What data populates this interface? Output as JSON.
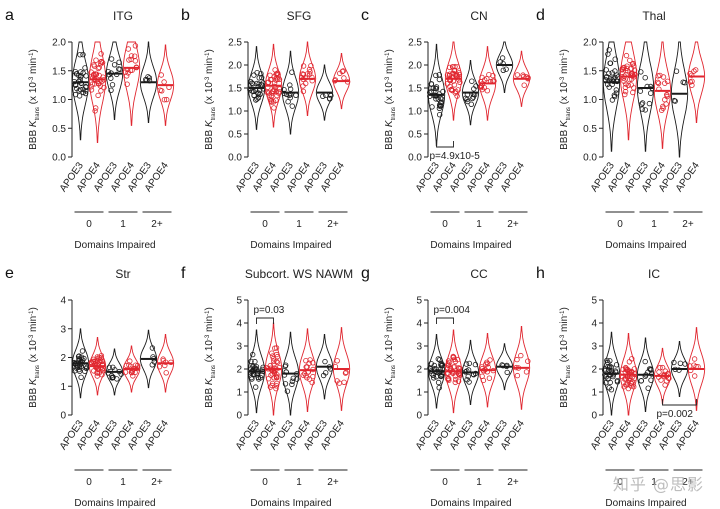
{
  "x_groups": [
    "0",
    "1",
    "2+"
  ],
  "x_labels": [
    "APOE3",
    "APOE4",
    "APOE3",
    "APOE4",
    "APOE3",
    "APOE4"
  ],
  "x_axis_title": "Domains Impaired",
  "colors": {
    "APOE3": "#1a1a1a",
    "APOE4": "#e0262f"
  },
  "watermark": "知乎 @思影",
  "chart_data": [
    {
      "type": "violin",
      "panel": "a",
      "title": "ITG",
      "ylabel": "BBB Ktrans (x 10-3 min-1)",
      "ylim": [
        0,
        2
      ],
      "yticks": [
        "0.0",
        "0.5",
        "1.0",
        "1.5",
        "2.0"
      ],
      "values": [
        1.3,
        1.35,
        1.45,
        1.55,
        1.3,
        1.25
      ],
      "spread": [
        0.5,
        0.55,
        0.4,
        0.5,
        0.35,
        0.35
      ],
      "n": [
        30,
        38,
        12,
        16,
        5,
        7
      ],
      "annotations": []
    },
    {
      "type": "violin",
      "panel": "b",
      "title": "SFG",
      "ylabel": "BBB Ktrans (x 10-3 min-1)",
      "ylim": [
        0,
        2.5
      ],
      "yticks": [
        "0.0",
        "0.5",
        "1.0",
        "1.5",
        "2.0",
        "2.5"
      ],
      "values": [
        1.5,
        1.55,
        1.4,
        1.7,
        1.4,
        1.65
      ],
      "spread": [
        0.45,
        0.45,
        0.45,
        0.4,
        0.3,
        0.3
      ],
      "n": [
        30,
        38,
        12,
        16,
        5,
        7
      ],
      "annotations": []
    },
    {
      "type": "violin",
      "panel": "c",
      "title": "CN",
      "ylabel": "BBB Ktrans (x 10-3 min-1)",
      "ylim": [
        0,
        2.5
      ],
      "yticks": [
        "0.0",
        "0.5",
        "1.0",
        "1.5",
        "2.0",
        "2.5"
      ],
      "values": [
        1.35,
        1.7,
        1.4,
        1.6,
        2.0,
        1.7
      ],
      "spread": [
        0.55,
        0.45,
        0.35,
        0.4,
        0.3,
        0.3
      ],
      "n": [
        30,
        38,
        12,
        16,
        5,
        7
      ],
      "annotations": [
        {
          "text": "p=4.9x10-5",
          "from": 0,
          "to": 1,
          "position": "below"
        }
      ]
    },
    {
      "type": "violin",
      "panel": "d",
      "title": "Thal",
      "ylabel": "BBB Ktrans (x 10-3 min-1)",
      "ylim": [
        0,
        2
      ],
      "yticks": [
        "0.0",
        "0.5",
        "1.0",
        "1.5",
        "2.0"
      ],
      "values": [
        1.3,
        1.4,
        1.2,
        1.15,
        1.1,
        1.4
      ],
      "spread": [
        0.6,
        0.55,
        0.55,
        0.5,
        0.55,
        0.4
      ],
      "n": [
        30,
        38,
        12,
        16,
        5,
        7
      ],
      "annotations": []
    },
    {
      "type": "violin",
      "panel": "e",
      "title": "Str",
      "ylabel": "BBB Ktrans (x 10-3 min-1)",
      "ylim": [
        0,
        4
      ],
      "yticks": [
        "0",
        "1",
        "2",
        "3",
        "4"
      ],
      "values": [
        1.8,
        1.7,
        1.5,
        1.6,
        1.95,
        1.8
      ],
      "spread": [
        0.6,
        0.5,
        0.4,
        0.4,
        0.5,
        0.5
      ],
      "n": [
        30,
        38,
        12,
        16,
        5,
        7
      ],
      "annotations": []
    },
    {
      "type": "violin",
      "panel": "f",
      "title": "Subcort. WS NAWM",
      "ylabel": "BBB Ktrans (x 10-3 min-1)",
      "ylim": [
        0,
        5
      ],
      "yticks": [
        "0",
        "1",
        "2",
        "3",
        "4",
        "5"
      ],
      "values": [
        1.9,
        2.0,
        1.8,
        1.95,
        2.1,
        2.0
      ],
      "spread": [
        0.9,
        1.0,
        0.9,
        0.9,
        0.7,
        0.9
      ],
      "n": [
        30,
        38,
        12,
        16,
        5,
        7
      ],
      "annotations": [
        {
          "text": "p=0.03",
          "from": 0,
          "to": 1,
          "position": "above"
        }
      ]
    },
    {
      "type": "violin",
      "panel": "g",
      "title": "CC",
      "ylabel": "BBB Ktrans (x 10-3 min-1)",
      "ylim": [
        0,
        5
      ],
      "yticks": [
        "0",
        "1",
        "2",
        "3",
        "4",
        "5"
      ],
      "values": [
        1.9,
        1.9,
        1.85,
        1.95,
        2.1,
        2.05
      ],
      "spread": [
        0.8,
        0.9,
        0.7,
        0.8,
        0.5,
        0.9
      ],
      "n": [
        30,
        38,
        12,
        16,
        5,
        7
      ],
      "annotations": [
        {
          "text": "p=0.004",
          "from": 0,
          "to": 1,
          "position": "above"
        }
      ]
    },
    {
      "type": "violin",
      "panel": "h",
      "title": "IC",
      "ylabel": "BBB Ktrans (x 10-3 min-1)",
      "ylim": [
        0,
        5
      ],
      "yticks": [
        "0",
        "1",
        "2",
        "3",
        "4",
        "5"
      ],
      "values": [
        1.8,
        1.75,
        1.75,
        1.7,
        2.0,
        2.0
      ],
      "spread": [
        0.9,
        0.9,
        0.8,
        0.6,
        0.6,
        0.9
      ],
      "n": [
        30,
        38,
        12,
        16,
        5,
        7
      ],
      "annotations": [
        {
          "text": "p=0.002",
          "from": 3,
          "to": 5,
          "position": "below"
        }
      ]
    }
  ]
}
